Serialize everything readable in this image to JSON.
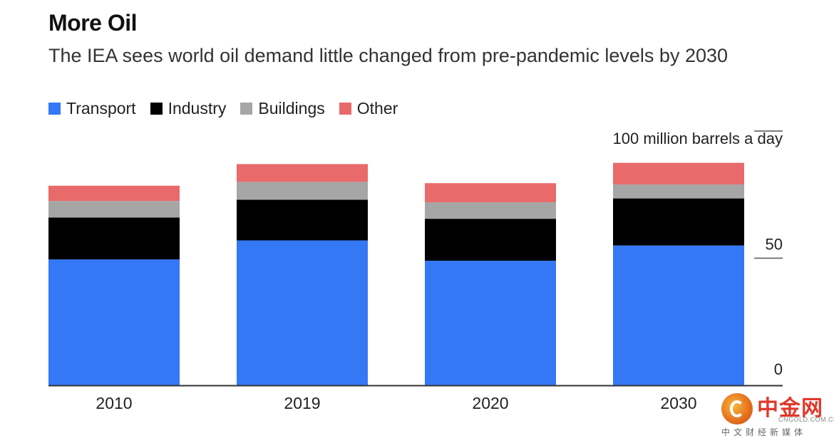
{
  "colors": {
    "transport": "#3478f6",
    "industry": "#000000",
    "buildings": "#a6a6a6",
    "other": "#e96a6a",
    "axis": "#333333"
  },
  "chart_data": {
    "type": "bar",
    "stacked": true,
    "title": "More Oil",
    "subtitle": "The IEA sees world oil demand little changed from pre-pandemic levels by 2030",
    "ylabel": "100 million barrels a day",
    "xlabel": "",
    "categories": [
      "2010",
      "2019",
      "2020",
      "2030"
    ],
    "series": [
      {
        "key": "transport",
        "name": "Transport",
        "values": [
          49.5,
          57,
          49,
          55
        ]
      },
      {
        "key": "industry",
        "name": "Industry",
        "values": [
          16.5,
          16,
          16.5,
          18.5
        ]
      },
      {
        "key": "buildings",
        "name": "Buildings",
        "values": [
          6.5,
          7,
          6.5,
          5.5
        ]
      },
      {
        "key": "other",
        "name": "Other",
        "values": [
          6,
          7,
          7.5,
          8.5
        ]
      }
    ],
    "ylim": [
      0,
      100
    ],
    "yticks": [
      {
        "value": 0,
        "label": "0"
      },
      {
        "value": 50,
        "label": "50"
      }
    ],
    "legend_position": "top-left",
    "grid": false
  },
  "watermark": {
    "name_cn": "中金网",
    "domain": "CNGOLD.COM.CN",
    "tagline": "中文财经新媒体"
  }
}
